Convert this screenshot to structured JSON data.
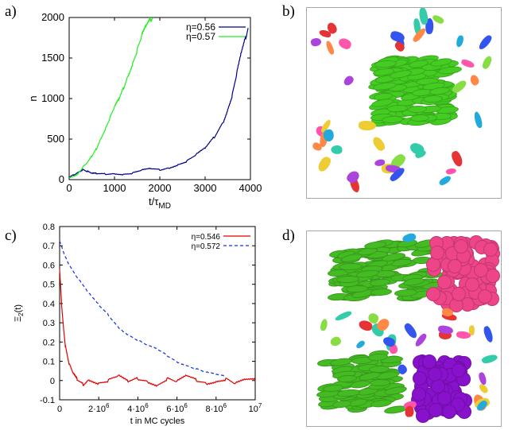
{
  "panels": {
    "a": "a)",
    "b": "b)",
    "c": "c)",
    "d": "d)"
  },
  "chart_data": [
    {
      "id": "a",
      "type": "line",
      "xlabel": "t/τ",
      "xlabel_sub": "MD",
      "ylabel": "n",
      "xlim": [
        0,
        4000
      ],
      "ylim": [
        0,
        2000
      ],
      "xticks": [
        0,
        1000,
        2000,
        3000,
        4000
      ],
      "yticks": [
        0,
        500,
        1000,
        1500,
        2000
      ],
      "xtick_labels": [
        "0",
        "1000",
        "2000",
        "3000",
        "4000"
      ],
      "ytick_labels": [
        "0",
        "500",
        "1000",
        "1500",
        "2000"
      ],
      "legend_position": "top-right",
      "series": [
        {
          "name": "η=0.56",
          "color": "#00008b",
          "style": "solid",
          "x": [
            0,
            100,
            200,
            300,
            400,
            500,
            600,
            800,
            1000,
            1200,
            1400,
            1600,
            1800,
            2000,
            2200,
            2400,
            2600,
            2800,
            3000,
            3200,
            3400,
            3500,
            3600,
            3700,
            3800,
            3900,
            3950
          ],
          "y": [
            30,
            60,
            100,
            130,
            100,
            70,
            70,
            70,
            80,
            70,
            80,
            110,
            130,
            120,
            150,
            190,
            230,
            300,
            380,
            520,
            720,
            880,
            1050,
            1300,
            1550,
            1750,
            1870
          ]
        },
        {
          "name": "η=0.57",
          "color": "#22ee22",
          "style": "solid",
          "x": [
            0,
            100,
            200,
            300,
            400,
            500,
            600,
            700,
            800,
            900,
            1000,
            1100,
            1200,
            1300,
            1400,
            1500,
            1600,
            1700,
            1800,
            1850
          ],
          "y": [
            30,
            50,
            80,
            150,
            200,
            280,
            380,
            520,
            640,
            760,
            880,
            980,
            1130,
            1300,
            1450,
            1600,
            1750,
            1880,
            1970,
            2000
          ]
        }
      ]
    },
    {
      "id": "c",
      "type": "line",
      "xlabel": "t in MC cycles",
      "ylabel": "Ξ",
      "ylabel_sub": "2",
      "ylabel_suffix": "(t)",
      "xlim": [
        0,
        10000000
      ],
      "ylim": [
        -0.1,
        0.8
      ],
      "xticks": [
        0,
        2000000,
        4000000,
        6000000,
        8000000,
        10000000
      ],
      "yticks": [
        -0.1,
        0,
        0.1,
        0.2,
        0.3,
        0.4,
        0.5,
        0.6,
        0.7,
        0.8
      ],
      "xtick_labels": [
        {
          "base": "0",
          "exp": ""
        },
        {
          "base": "2·10",
          "exp": "6"
        },
        {
          "base": "4·10",
          "exp": "6"
        },
        {
          "base": "6·10",
          "exp": "6"
        },
        {
          "base": "8·10",
          "exp": "6"
        },
        {
          "base": "10",
          "exp": "7"
        }
      ],
      "ytick_labels": [
        "-0.1",
        "0",
        "0.1",
        "0.2",
        "0.3",
        "0.4",
        "0.5",
        "0.6",
        "0.7",
        "0.8"
      ],
      "legend_position": "top-right",
      "series": [
        {
          "name": "η=0.546",
          "color": "#e00000",
          "style": "solid",
          "x": [
            0,
            100000,
            200000,
            300000,
            500000,
            700000,
            900000,
            1200000,
            1500000,
            2000000,
            2500000,
            3000000,
            3500000,
            4000000,
            4500000,
            5000000,
            5500000,
            6000000,
            6500000,
            7000000,
            7500000,
            8000000,
            8500000,
            9000000,
            9500000,
            10000000
          ],
          "y": [
            0.58,
            0.4,
            0.28,
            0.18,
            0.08,
            0.03,
            0.0,
            -0.02,
            0.01,
            -0.01,
            0.0,
            0.02,
            -0.01,
            0.01,
            0.0,
            -0.02,
            0.01,
            -0.01,
            0.02,
            0.0,
            -0.01,
            0.0,
            0.01,
            -0.02,
            0.0,
            0.0
          ]
        },
        {
          "name": "η=0.572",
          "color": "#1030e0",
          "style": "dashed",
          "x": [
            0,
            200000,
            500000,
            1000000,
            1500000,
            2000000,
            2500000,
            3000000,
            3500000,
            4000000,
            4500000,
            5000000,
            5500000,
            6000000,
            6500000,
            7000000,
            7500000,
            8000000,
            8500000
          ],
          "y": [
            0.73,
            0.67,
            0.6,
            0.52,
            0.45,
            0.39,
            0.34,
            0.28,
            0.24,
            0.21,
            0.18,
            0.16,
            0.13,
            0.1,
            0.08,
            0.06,
            0.04,
            0.03,
            0.02
          ]
        }
      ]
    }
  ],
  "scenes": {
    "b": {
      "cluster_colors": [
        "#44cc22"
      ]
    },
    "d": {
      "cluster_colors": [
        "#44bb22",
        "#ee4488",
        "#8811cc"
      ]
    },
    "fragment_colors": [
      "#e63333",
      "#3355ee",
      "#33ccaa",
      "#ff8844",
      "#aa44dd",
      "#eecc33",
      "#ff55aa",
      "#22aadd",
      "#88dd44"
    ]
  }
}
